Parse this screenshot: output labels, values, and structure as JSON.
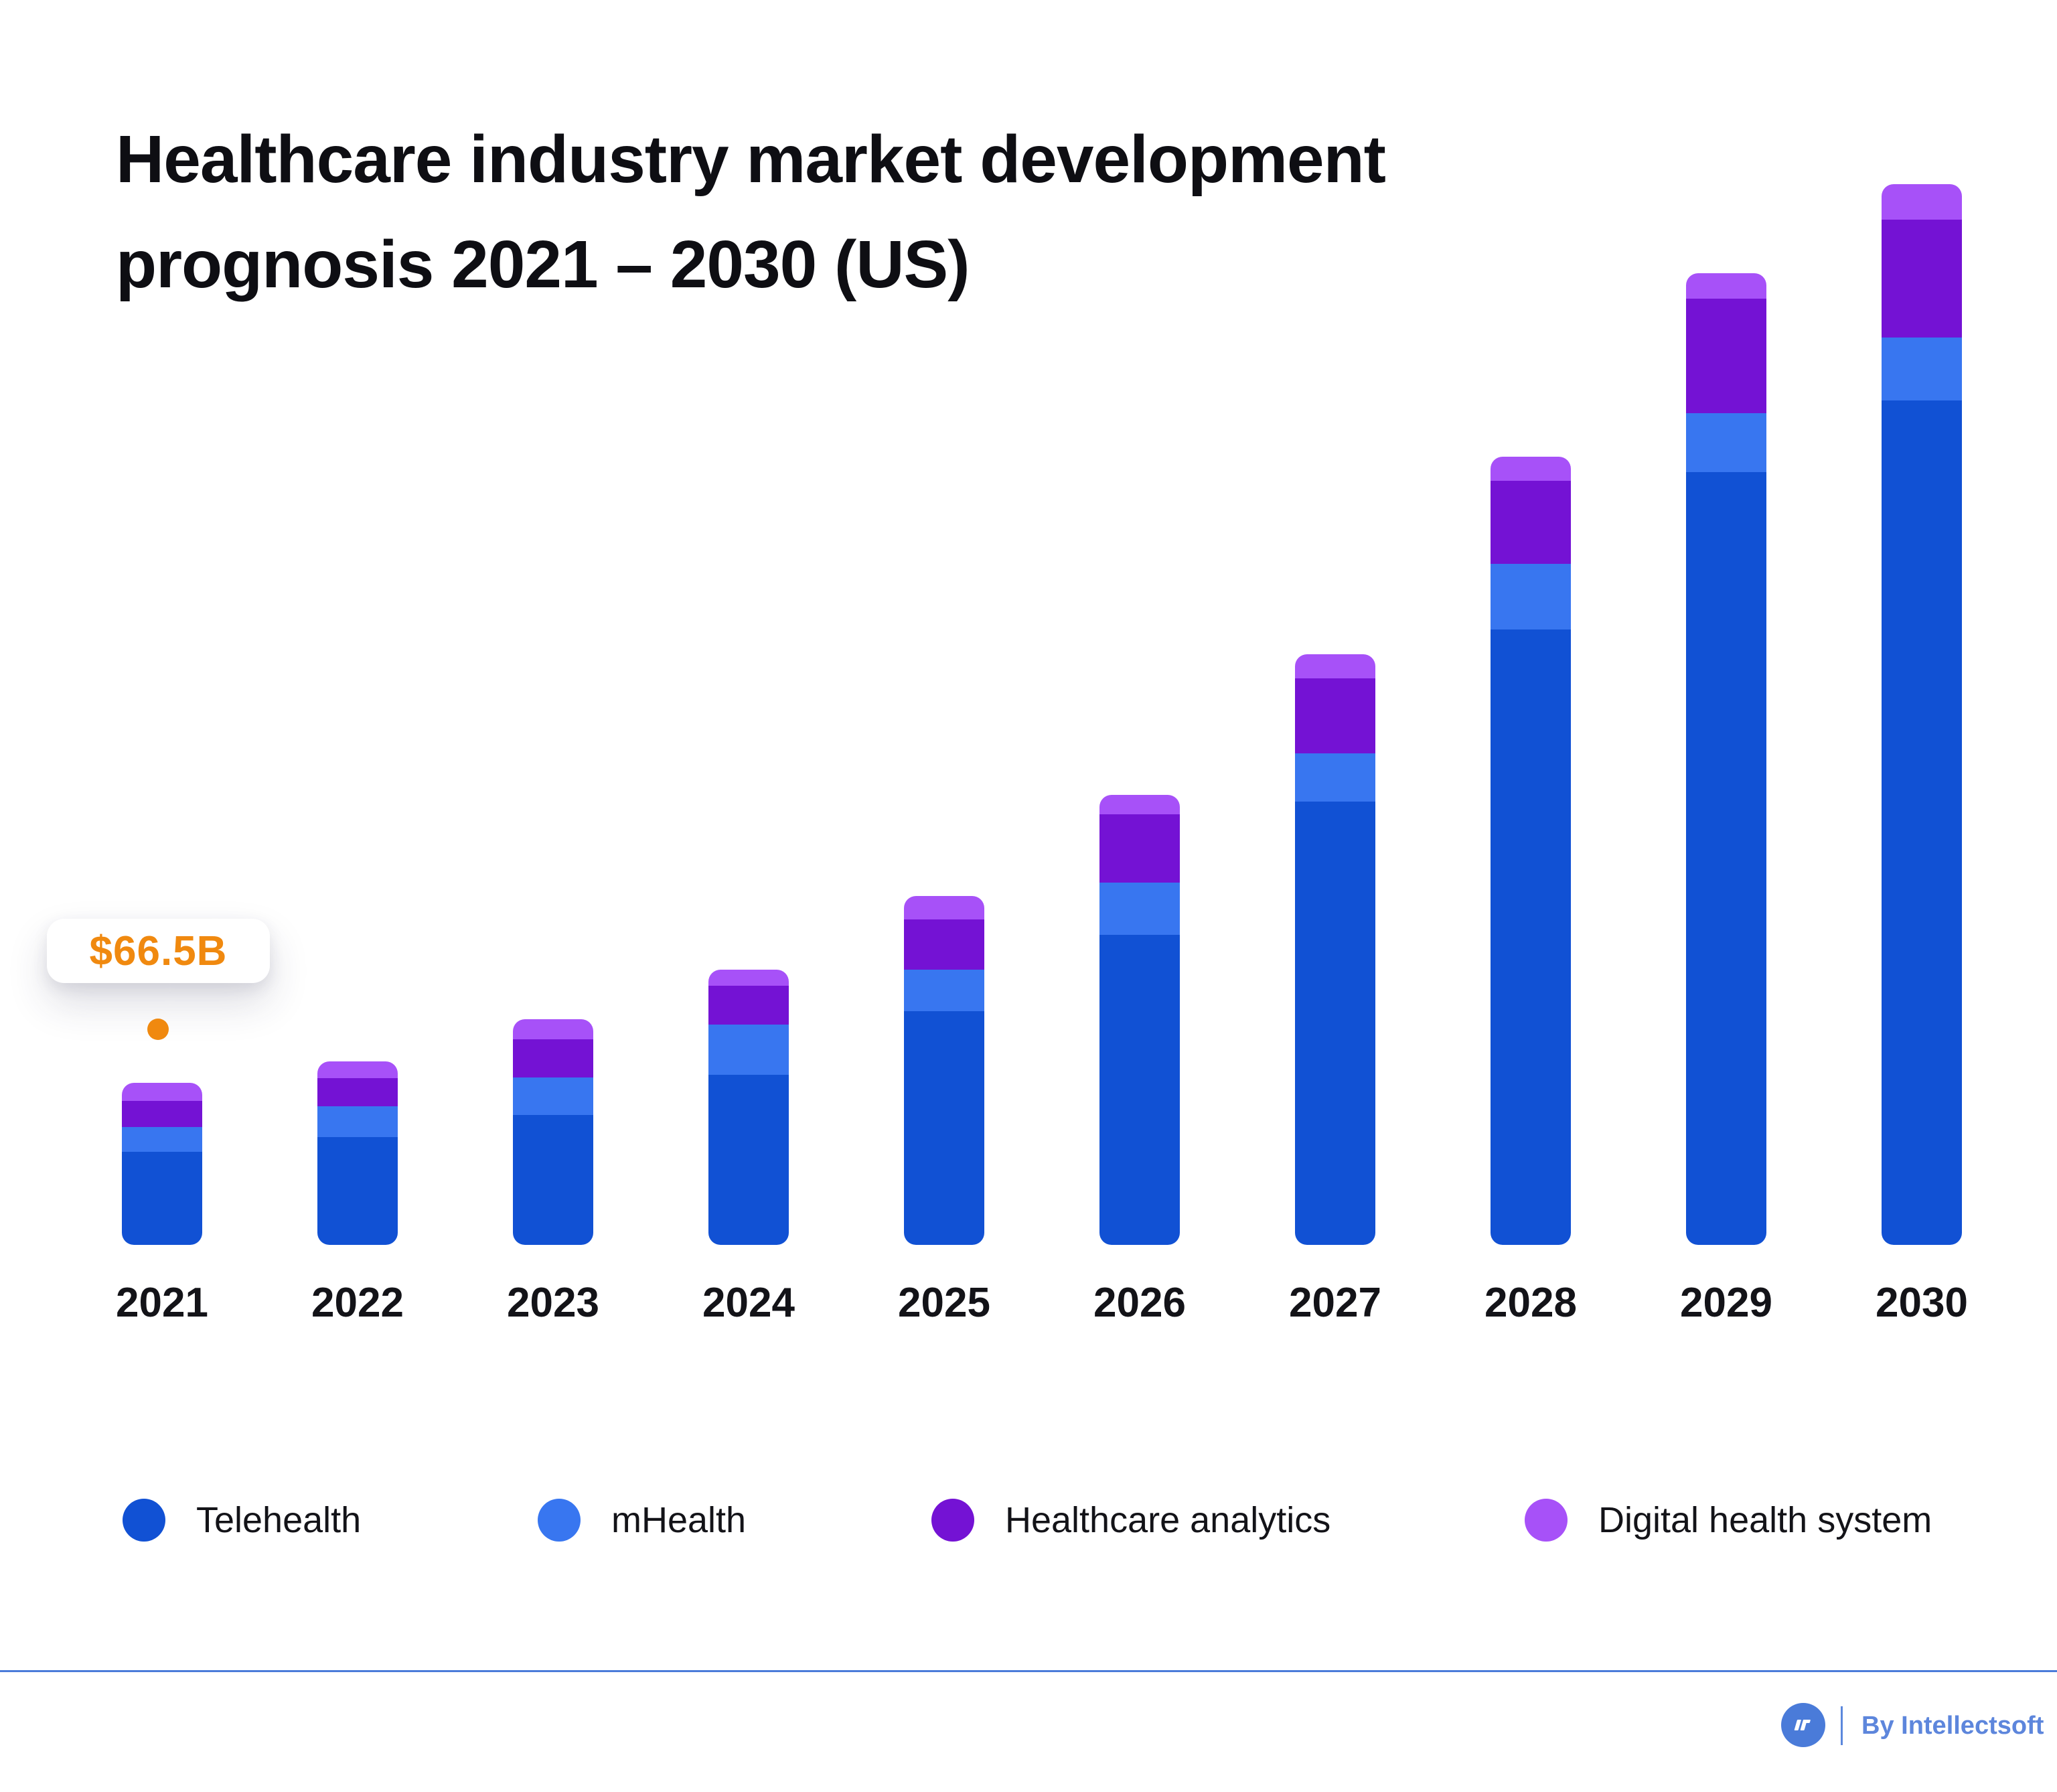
{
  "title": {
    "line1": "Healthcare industry market development",
    "line2": "prognosis 2021 – 2030 (US)"
  },
  "callout": {
    "label": "$66.5B",
    "color": "#F0890F",
    "target_year": "2021"
  },
  "legend": [
    {
      "name": "Telehealth",
      "color": "#1151D4"
    },
    {
      "name": "mHealth",
      "color": "#3876F0"
    },
    {
      "name": "Healthcare analytics",
      "color": "#7412D4"
    },
    {
      "name": "Digital health system",
      "color": "#A751F8"
    }
  ],
  "footer": {
    "credit": "By Intellectsoft",
    "accent_color": "#4A7BD9",
    "logo": "intellectsoft-logo"
  },
  "chart_data": {
    "type": "bar",
    "stacked": true,
    "title": "Healthcare industry market development prognosis 2021 – 2030 (US)",
    "unit": "USD billions",
    "categories": [
      "2021",
      "2022",
      "2023",
      "2024",
      "2025",
      "2026",
      "2027",
      "2028",
      "2029",
      "2030"
    ],
    "series": [
      {
        "name": "Telehealth",
        "color": "#1151D4",
        "values": [
          38.2,
          44.2,
          53.3,
          69.8,
          95.9,
          127.2,
          181.9,
          252.5,
          317.1,
          346.5
        ]
      },
      {
        "name": "mHealth",
        "color": "#3876F0",
        "values": [
          10.2,
          12.6,
          15.4,
          20.6,
          17.0,
          21.4,
          19.8,
          26.9,
          24.2,
          25.8
        ]
      },
      {
        "name": "Healthcare analytics",
        "color": "#7412D4",
        "values": [
          10.7,
          11.5,
          15.7,
          15.9,
          20.6,
          28.0,
          30.8,
          34.1,
          47.0,
          48.4
        ]
      },
      {
        "name": "Digital health system",
        "color": "#A751F8",
        "values": [
          7.4,
          7.1,
          8.2,
          6.6,
          9.6,
          8.0,
          9.9,
          9.9,
          10.4,
          14.6
        ]
      }
    ],
    "totals": [
      66.5,
      75.4,
      92.6,
      112.9,
      143.1,
      184.6,
      242.4,
      323.4,
      398.7,
      435.3
    ],
    "annotations": [
      {
        "category": "2021",
        "label": "$66.5B",
        "color": "#F0890F"
      }
    ],
    "ylim": [
      0,
      440
    ],
    "grid": false,
    "axis_lines": false,
    "legend_position": "bottom"
  }
}
